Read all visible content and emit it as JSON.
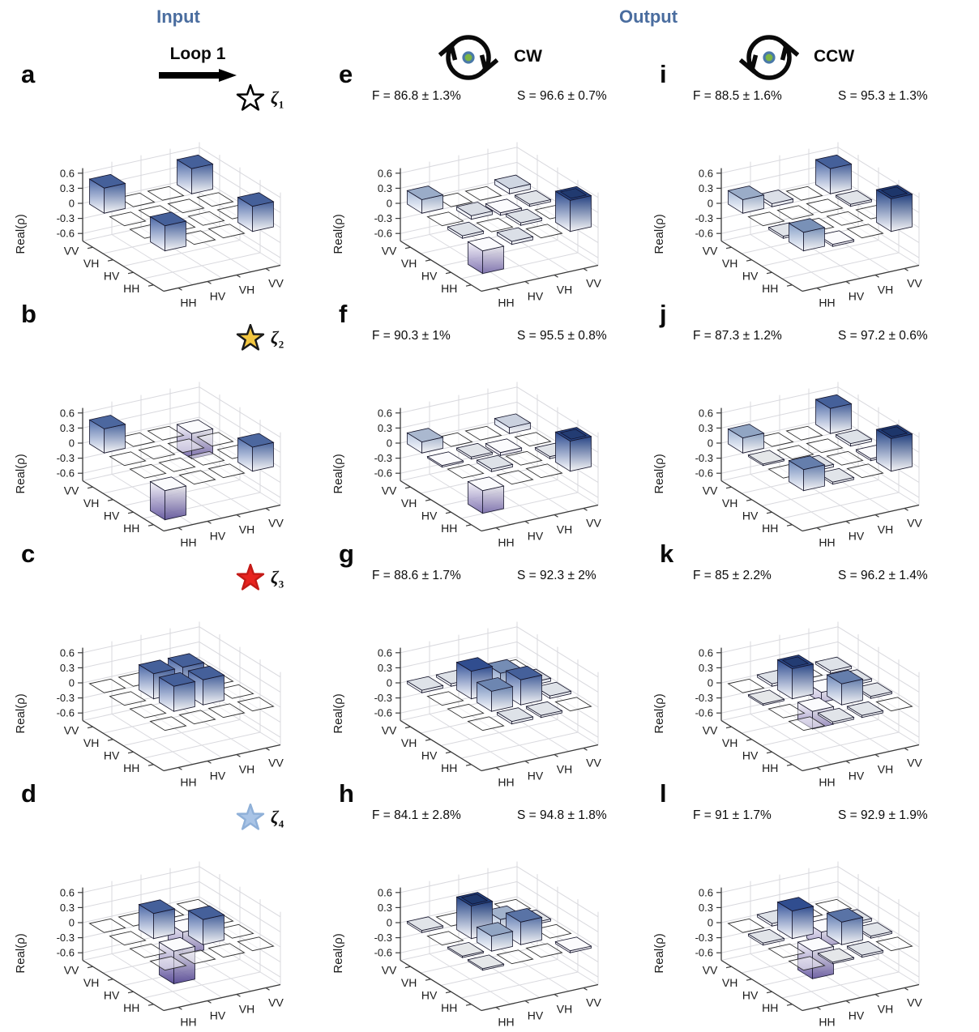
{
  "header": {
    "input_label": "Input",
    "output_label": "Output",
    "loop_label": "Loop 1",
    "cw_label": "CW",
    "ccw_label": "CCW",
    "accent_color": "#4a6d9f",
    "port_dot_fill": "#7cb544",
    "port_dot_ring": "#4a79a8"
  },
  "chart_data": {
    "type": "bar",
    "subtype": "3d-density-matrix-grid",
    "zlabel": "Real(ρ)",
    "z_ticks": [
      "0.6",
      "0.3",
      "0",
      "-0.3",
      "-0.6"
    ],
    "z_tick_values": [
      0.6,
      0.3,
      0,
      -0.3,
      -0.6
    ],
    "zlim": [
      -0.75,
      0.7
    ],
    "x_axis_labels": [
      "HH",
      "HV",
      "VH",
      "VV"
    ],
    "y_axis_labels": [
      "HH",
      "HV",
      "VH",
      "VV"
    ],
    "grid_on": true,
    "positive_bar_color": "#1c3c7c",
    "negative_bar_color": "#43348a",
    "panels": [
      {
        "letter": "a",
        "group": "input",
        "row": 0,
        "col": 0,
        "marker": {
          "star_fill": "#ffffff",
          "star_stroke": "#000000",
          "zeta_symbol": "ζ",
          "zeta_sub": "1"
        },
        "bars": [
          {
            "row": "HH",
            "col": "HH",
            "value": 0.5
          },
          {
            "row": "HH",
            "col": "VV",
            "value": 0.5
          },
          {
            "row": "VV",
            "col": "HH",
            "value": 0.5
          },
          {
            "row": "VV",
            "col": "VV",
            "value": 0.5
          }
        ]
      },
      {
        "letter": "e",
        "group": "output-cw",
        "row": 0,
        "col": 1,
        "stats": {
          "fidelity": "F = 86.8 ± 1.3%",
          "purity": "S = 96.6 ± 0.7%"
        },
        "bars": [
          {
            "row": "HH",
            "col": "HH",
            "value": -0.45
          },
          {
            "row": "VV",
            "col": "HH",
            "value": 0.27
          },
          {
            "row": "HH",
            "col": "VV",
            "value": 0.62
          },
          {
            "row": "HV",
            "col": "HH",
            "value": 0.05
          },
          {
            "row": "HH",
            "col": "HV",
            "value": 0.06
          },
          {
            "row": "VH",
            "col": "HV",
            "value": 0.07
          },
          {
            "row": "VV",
            "col": "VV",
            "value": 0.1
          },
          {
            "row": "VH",
            "col": "VH",
            "value": -0.05
          },
          {
            "row": "HV",
            "col": "VH",
            "value": 0.05
          },
          {
            "row": "VH",
            "col": "VV",
            "value": 0.04
          }
        ]
      },
      {
        "letter": "i",
        "group": "output-ccw",
        "row": 0,
        "col": 2,
        "stats": {
          "fidelity": "F = 88.5 ± 1.6%",
          "purity": "S = 95.3 ± 1.3%"
        },
        "bars": [
          {
            "row": "VV",
            "col": "HH",
            "value": 0.27
          },
          {
            "row": "HH",
            "col": "VV",
            "value": 0.65
          },
          {
            "row": "VV",
            "col": "VV",
            "value": 0.5
          },
          {
            "row": "HH",
            "col": "HH",
            "value": 0.37
          },
          {
            "row": "HV",
            "col": "HH",
            "value": 0.04
          },
          {
            "row": "VV",
            "col": "HV",
            "value": 0.06
          },
          {
            "row": "VH",
            "col": "VV",
            "value": 0.04
          },
          {
            "row": "HH",
            "col": "HV",
            "value": -0.04
          }
        ]
      },
      {
        "letter": "b",
        "group": "input",
        "row": 1,
        "col": 0,
        "marker": {
          "star_fill": "#f2c640",
          "star_stroke": "#1a1a1a",
          "zeta_symbol": "ζ",
          "zeta_sub": "2"
        },
        "bars": [
          {
            "row": "VV",
            "col": "HH",
            "value": 0.48
          },
          {
            "row": "HH",
            "col": "VV",
            "value": 0.48
          },
          {
            "row": "HH",
            "col": "HH",
            "value": -0.58
          },
          {
            "row": "VV",
            "col": "VV",
            "value": -0.5
          }
        ]
      },
      {
        "letter": "f",
        "group": "output-cw",
        "row": 1,
        "col": 1,
        "stats": {
          "fidelity": "F = 90.3 ± 1%",
          "purity": "S = 95.5 ± 0.8%"
        },
        "bars": [
          {
            "row": "HH",
            "col": "HH",
            "value": -0.45
          },
          {
            "row": "VV",
            "col": "HH",
            "value": 0.22
          },
          {
            "row": "HH",
            "col": "VV",
            "value": 0.6
          },
          {
            "row": "VV",
            "col": "VV",
            "value": 0.12
          },
          {
            "row": "VH",
            "col": "VH",
            "value": -0.06
          },
          {
            "row": "HV",
            "col": "HV",
            "value": 0.05
          },
          {
            "row": "VH",
            "col": "HV",
            "value": 0.04
          },
          {
            "row": "HV",
            "col": "VV",
            "value": 0.04
          },
          {
            "row": "VH",
            "col": "HH",
            "value": -0.03
          }
        ]
      },
      {
        "letter": "j",
        "group": "output-ccw",
        "row": 1,
        "col": 2,
        "stats": {
          "fidelity": "F = 87.3 ± 1.2%",
          "purity": "S = 97.2 ± 0.6%"
        },
        "bars": [
          {
            "row": "VV",
            "col": "HH",
            "value": 0.3
          },
          {
            "row": "HH",
            "col": "VV",
            "value": 0.65
          },
          {
            "row": "VV",
            "col": "VV",
            "value": 0.5
          },
          {
            "row": "HH",
            "col": "HH",
            "value": 0.42
          },
          {
            "row": "HV",
            "col": "HV",
            "value": 0.05
          },
          {
            "row": "HH",
            "col": "HV",
            "value": 0.04
          },
          {
            "row": "VH",
            "col": "VV",
            "value": 0.05
          },
          {
            "row": "HV",
            "col": "VV",
            "value": -0.04
          },
          {
            "row": "VH",
            "col": "HH",
            "value": 0.03
          }
        ]
      },
      {
        "letter": "c",
        "group": "input",
        "row": 2,
        "col": 0,
        "marker": {
          "star_fill": "#e8231f",
          "star_stroke": "#c41a17",
          "zeta_symbol": "ζ",
          "zeta_sub": "3"
        },
        "bars": [
          {
            "row": "HV",
            "col": "HV",
            "value": 0.5
          },
          {
            "row": "HV",
            "col": "VH",
            "value": 0.5
          },
          {
            "row": "VH",
            "col": "HV",
            "value": 0.5
          },
          {
            "row": "VH",
            "col": "VH",
            "value": 0.5
          }
        ]
      },
      {
        "letter": "g",
        "group": "output-cw",
        "row": 2,
        "col": 1,
        "stats": {
          "fidelity": "F = 88.6 ± 1.7%",
          "purity": "S = 92.3 ± 2%"
        },
        "bars": [
          {
            "row": "VH",
            "col": "HV",
            "value": 0.55
          },
          {
            "row": "VH",
            "col": "VH",
            "value": 0.38
          },
          {
            "row": "HV",
            "col": "HV",
            "value": 0.4
          },
          {
            "row": "HV",
            "col": "VH",
            "value": 0.5
          },
          {
            "row": "VV",
            "col": "HH",
            "value": 0.05
          },
          {
            "row": "HH",
            "col": "HV",
            "value": 0.05
          },
          {
            "row": "VV",
            "col": "HV",
            "value": 0.05
          },
          {
            "row": "HV",
            "col": "VV",
            "value": 0.05
          },
          {
            "row": "VH",
            "col": "VV",
            "value": 0.06
          },
          {
            "row": "HH",
            "col": "VH",
            "value": 0.04
          }
        ]
      },
      {
        "letter": "k",
        "group": "output-ccw",
        "row": 2,
        "col": 2,
        "stats": {
          "fidelity": "F = 85 ± 2.2%",
          "purity": "S = 96.2 ± 1.4%"
        },
        "bars": [
          {
            "row": "VH",
            "col": "HV",
            "value": 0.6
          },
          {
            "row": "HV",
            "col": "VH",
            "value": 0.42
          },
          {
            "row": "HV",
            "col": "HV",
            "value": -0.35
          },
          {
            "row": "VH",
            "col": "VH",
            "value": -0.2
          },
          {
            "row": "VV",
            "col": "HV",
            "value": 0.05
          },
          {
            "row": "VV",
            "col": "VV",
            "value": 0.05
          },
          {
            "row": "VH",
            "col": "VV",
            "value": 0.05
          },
          {
            "row": "HH",
            "col": "HV",
            "value": 0.04
          },
          {
            "row": "HH",
            "col": "VH",
            "value": 0.04
          },
          {
            "row": "VH",
            "col": "HH",
            "value": 0.03
          },
          {
            "row": "HV",
            "col": "VV",
            "value": 0.04
          }
        ]
      },
      {
        "letter": "d",
        "group": "input",
        "row": 3,
        "col": 0,
        "marker": {
          "star_fill": "#a9c4e6",
          "star_stroke": "#8fb0d8",
          "zeta_symbol": "ζ",
          "zeta_sub": "4"
        },
        "bars": [
          {
            "row": "HV",
            "col": "VH",
            "value": 0.5
          },
          {
            "row": "VH",
            "col": "HV",
            "value": 0.5
          },
          {
            "row": "HV",
            "col": "HV",
            "value": -0.65
          },
          {
            "row": "VH",
            "col": "VH",
            "value": -0.45
          }
        ]
      },
      {
        "letter": "h",
        "group": "output-cw",
        "row": 3,
        "col": 1,
        "stats": {
          "fidelity": "F = 84.1 ± 2.8%",
          "purity": "S = 94.8 ± 1.8%"
        },
        "bars": [
          {
            "row": "VH",
            "col": "HV",
            "value": 0.65
          },
          {
            "row": "HV",
            "col": "HV",
            "value": 0.3
          },
          {
            "row": "HV",
            "col": "VH",
            "value": 0.45
          },
          {
            "row": "VH",
            "col": "VH",
            "value": 0.25
          },
          {
            "row": "VV",
            "col": "HH",
            "value": 0.04
          },
          {
            "row": "HH",
            "col": "HH",
            "value": 0.03
          },
          {
            "row": "HH",
            "col": "VV",
            "value": -0.04
          },
          {
            "row": "VH",
            "col": "VV",
            "value": 0.04
          },
          {
            "row": "VV",
            "col": "VH",
            "value": -0.03
          },
          {
            "row": "HV",
            "col": "HH",
            "value": 0.03
          }
        ]
      },
      {
        "letter": "l",
        "group": "output-ccw",
        "row": 3,
        "col": 2,
        "stats": {
          "fidelity": "F = 91 ± 1.7%",
          "purity": "S = 92.9 ± 1.9%"
        },
        "bars": [
          {
            "row": "VH",
            "col": "HV",
            "value": 0.55
          },
          {
            "row": "HV",
            "col": "VH",
            "value": 0.45
          },
          {
            "row": "HV",
            "col": "HV",
            "value": -0.55
          },
          {
            "row": "VH",
            "col": "VH",
            "value": -0.3
          },
          {
            "row": "VV",
            "col": "HV",
            "value": 0.05
          },
          {
            "row": "VH",
            "col": "HH",
            "value": 0.04
          },
          {
            "row": "HH",
            "col": "VH",
            "value": 0.04
          },
          {
            "row": "VH",
            "col": "VV",
            "value": 0.05
          },
          {
            "row": "HV",
            "col": "VV",
            "value": 0.04
          },
          {
            "row": "HH",
            "col": "HV",
            "value": 0.03
          }
        ]
      }
    ]
  }
}
